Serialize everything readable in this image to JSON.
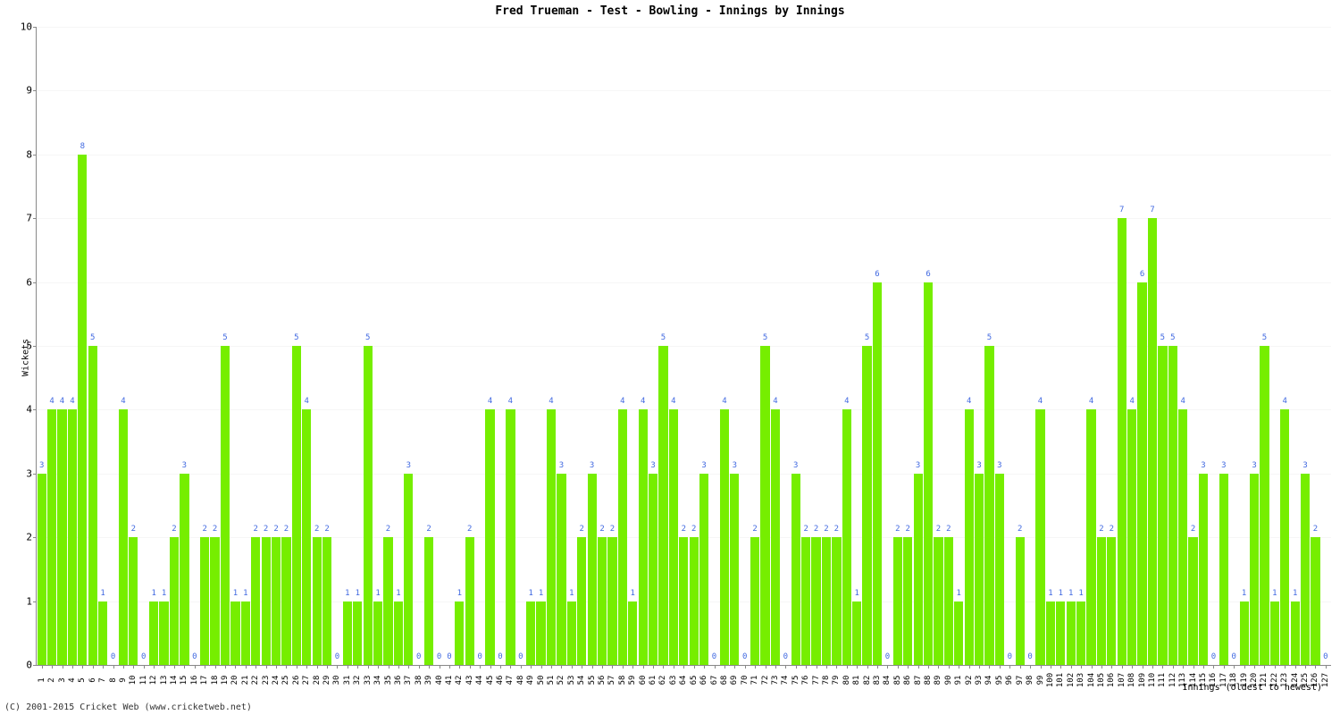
{
  "chart": {
    "type": "bar",
    "title": "Fred Trueman - Test - Bowling - Innings by Innings",
    "title_fontsize": 13,
    "ylabel": "Wickets",
    "xlabel": "Innings (oldest to newest)",
    "copyright": "(C) 2001-2015 Cricket Web (www.cricketweb.net)",
    "ylim": [
      0,
      10
    ],
    "ytick_step": 1,
    "bar_color": "#76ee00",
    "value_label_color": "#4169e1",
    "background_color": "#ffffff",
    "grid_color": "#f6f6f6",
    "axis_color": "#888888",
    "label_fontsize": 10,
    "value_label_fontsize": 9,
    "tick_fontsize": 11,
    "categories": [
      1,
      2,
      3,
      4,
      5,
      6,
      7,
      8,
      9,
      10,
      11,
      12,
      13,
      14,
      15,
      16,
      17,
      18,
      19,
      20,
      21,
      22,
      23,
      24,
      25,
      26,
      27,
      28,
      29,
      30,
      31,
      32,
      33,
      34,
      35,
      36,
      37,
      38,
      39,
      40,
      41,
      42,
      43,
      44,
      45,
      46,
      47,
      48,
      49,
      50,
      51,
      52,
      53,
      54,
      55,
      56,
      57,
      58,
      59,
      60,
      61,
      62,
      63,
      64,
      65,
      66,
      67,
      68,
      69,
      70,
      71,
      72,
      73,
      74,
      75,
      76,
      77,
      78,
      79,
      80,
      81,
      82,
      83,
      84,
      85,
      86,
      87,
      88,
      89,
      90,
      91,
      92,
      93,
      94,
      95,
      96,
      97,
      98,
      99,
      100,
      101,
      102,
      103,
      104,
      105,
      106,
      107,
      108,
      109,
      110,
      111,
      112,
      113,
      114,
      115,
      116,
      117,
      118,
      119,
      120,
      121,
      122,
      123,
      124,
      125,
      126,
      127
    ],
    "values": [
      3,
      4,
      4,
      4,
      8,
      5,
      1,
      0,
      4,
      2,
      0,
      1,
      1,
      2,
      3,
      0,
      2,
      2,
      5,
      1,
      1,
      2,
      2,
      2,
      2,
      5,
      4,
      2,
      2,
      0,
      1,
      1,
      5,
      1,
      2,
      1,
      3,
      0,
      2,
      0,
      0,
      1,
      2,
      0,
      4,
      0,
      4,
      0,
      1,
      1,
      4,
      3,
      1,
      2,
      3,
      2,
      2,
      4,
      1,
      4,
      3,
      5,
      4,
      2,
      2,
      3,
      0,
      4,
      3,
      0,
      2,
      5,
      4,
      0,
      3,
      2,
      2,
      2,
      2,
      4,
      1,
      5,
      6,
      0,
      2,
      2,
      3,
      6,
      2,
      2,
      1,
      4,
      3,
      5,
      3,
      0,
      2,
      0,
      4,
      1,
      1,
      1,
      1,
      4,
      2,
      2,
      7,
      4,
      6,
      7,
      5,
      5,
      4,
      2,
      3,
      0,
      3,
      0,
      1,
      3,
      5,
      1,
      4,
      1,
      3,
      2,
      0
    ]
  }
}
